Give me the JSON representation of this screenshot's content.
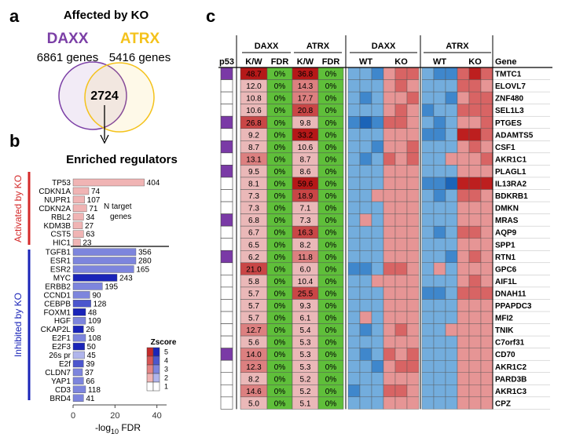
{
  "panel_a": {
    "letter": "a",
    "title": "Affected by KO",
    "left_set": {
      "name": "DAXX",
      "count_text": "6861 genes",
      "color": "#7b3fa6"
    },
    "right_set": {
      "name": "ATRX",
      "count_text": "5416 genes",
      "color": "#f4c21b"
    },
    "overlap": "2724"
  },
  "panel_b": {
    "letter": "b",
    "title": "Enriched regulators",
    "group_activated": "Activated by KO",
    "group_inhibited": "Inhibited by KO",
    "annotation": [
      "N target",
      "genes"
    ],
    "xlabel_main": "-log",
    "xlabel_sub": "10",
    "xlabel_tail": " FDR",
    "legend_title": "Zscore",
    "legend_values": [
      "5",
      "4",
      "3",
      "2",
      "1"
    ],
    "activated_colors": [
      "#c52a2a",
      "#d65555",
      "#e38383",
      "#f0b4b4",
      "#ffffff"
    ],
    "inhibited_colors": [
      "#1a24b8",
      "#4c56cd",
      "#7d85dd",
      "#b0b5ec",
      "#ffffff"
    ]
  },
  "chart_data": {
    "type": "bar",
    "orientation": "horizontal",
    "xlim": [
      0,
      45
    ],
    "xticks": [
      0,
      20,
      40
    ],
    "activated": [
      {
        "name": "TP53",
        "value": 34,
        "label": "404",
        "zscore": 2
      },
      {
        "name": "CDKN1A",
        "value": 7.5,
        "label": "74",
        "zscore": 2
      },
      {
        "name": "NUPR1",
        "value": 5.5,
        "label": "107",
        "zscore": 2
      },
      {
        "name": "CDKN2A",
        "value": 6.5,
        "label": "71",
        "zscore": 2
      },
      {
        "name": "RBL2",
        "value": 5,
        "label": "34",
        "zscore": 2
      },
      {
        "name": "KDM3B",
        "value": 4.5,
        "label": "27",
        "zscore": 2
      },
      {
        "name": "CST5",
        "value": 5,
        "label": "63",
        "zscore": 2
      },
      {
        "name": "HIC1",
        "value": 3.5,
        "label": "23",
        "zscore": 2
      }
    ],
    "inhibited": [
      {
        "name": "TGFB1",
        "value": 30,
        "label": "356",
        "zscore": 3
      },
      {
        "name": "ESR1",
        "value": 30,
        "label": "280",
        "zscore": 3
      },
      {
        "name": "ESR2",
        "value": 29,
        "label": "165",
        "zscore": 3
      },
      {
        "name": "MYC",
        "value": 21,
        "label": "243",
        "zscore": 5
      },
      {
        "name": "ERBB2",
        "value": 14,
        "label": "195",
        "zscore": 3
      },
      {
        "name": "CCND1",
        "value": 8,
        "label": "90",
        "zscore": 3
      },
      {
        "name": "CEBPB",
        "value": 8.5,
        "label": "128",
        "zscore": 4
      },
      {
        "name": "FOXM1",
        "value": 6,
        "label": "48",
        "zscore": 5
      },
      {
        "name": "HGF",
        "value": 6,
        "label": "109",
        "zscore": 3
      },
      {
        "name": "CKAP2L",
        "value": 5,
        "label": "26",
        "zscore": 5
      },
      {
        "name": "E2F1",
        "value": 6,
        "label": "108",
        "zscore": 3
      },
      {
        "name": "E2F3",
        "value": 5.5,
        "label": "50",
        "zscore": 5
      },
      {
        "name": "26s pr",
        "value": 5.5,
        "label": "45",
        "zscore": 2
      },
      {
        "name": "E2f",
        "value": 5,
        "label": "39",
        "zscore": 4
      },
      {
        "name": "CLDN7",
        "value": 4.5,
        "label": "37",
        "zscore": 3
      },
      {
        "name": "YAP1",
        "value": 5,
        "label": "66",
        "zscore": 3
      },
      {
        "name": "CD3",
        "value": 6,
        "label": "118",
        "zscore": 3
      },
      {
        "name": "BRD4",
        "value": 5,
        "label": "41",
        "zscore": 3
      }
    ]
  },
  "panel_c": {
    "letter": "c",
    "col_p53": "p53",
    "col_kw": "K/W",
    "col_fdr": "FDR",
    "col_gene": "Gene",
    "col_wt": "WT",
    "col_ko": "KO",
    "group_daxx": "DAXX",
    "group_atrx": "ATRX",
    "p53_color": "#7a3aa6",
    "fdr_color": "#5fbf3a",
    "rows": [
      {
        "gene": "TMTC1",
        "p53": true,
        "daxx_kw": "48.7",
        "daxx_fdr": "0%",
        "atrx_kw": "36.8",
        "atrx_fdr": "0%",
        "dk": 5,
        "ak": 5,
        "dw": [
          2,
          2,
          1
        ],
        "dko": [
          3,
          4,
          4
        ],
        "aw": [
          2,
          1,
          1
        ],
        "ako": [
          4,
          5,
          4
        ]
      },
      {
        "gene": "ELOVL7",
        "p53": false,
        "daxx_kw": "12.0",
        "daxx_fdr": "0%",
        "atrx_kw": "14.3",
        "atrx_fdr": "0%",
        "dk": 2,
        "ak": 3,
        "dw": [
          2,
          2,
          2
        ],
        "dko": [
          3,
          4,
          3
        ],
        "aw": [
          2,
          2,
          2
        ],
        "ako": [
          4,
          4,
          3
        ]
      },
      {
        "gene": "ZNF480",
        "p53": false,
        "daxx_kw": "10.8",
        "daxx_fdr": "0%",
        "atrx_kw": "17.7",
        "atrx_fdr": "0%",
        "dk": 2,
        "ak": 3,
        "dw": [
          2,
          1,
          2
        ],
        "dko": [
          3,
          3,
          4
        ],
        "aw": [
          2,
          2,
          1
        ],
        "ako": [
          3,
          4,
          4
        ]
      },
      {
        "gene": "SEL1L3",
        "p53": false,
        "daxx_kw": "10.6",
        "daxx_fdr": "0%",
        "atrx_kw": "20.8",
        "atrx_fdr": "0%",
        "dk": 2,
        "ak": 4,
        "dw": [
          2,
          2,
          2
        ],
        "dko": [
          3,
          4,
          3
        ],
        "aw": [
          1,
          2,
          2
        ],
        "ako": [
          4,
          4,
          4
        ]
      },
      {
        "gene": "PTGES",
        "p53": true,
        "daxx_kw": "26.8",
        "daxx_fdr": "0%",
        "atrx_kw": "9.8",
        "atrx_fdr": "0%",
        "dk": 4,
        "ak": 2,
        "dw": [
          1,
          0,
          1
        ],
        "dko": [
          4,
          4,
          3
        ],
        "aw": [
          2,
          1,
          2
        ],
        "ako": [
          3,
          3,
          4
        ]
      },
      {
        "gene": "ADAMTS5",
        "p53": false,
        "daxx_kw": "9.2",
        "daxx_fdr": "0%",
        "atrx_kw": "33.2",
        "atrx_fdr": "0%",
        "dk": 2,
        "ak": 5,
        "dw": [
          2,
          2,
          2
        ],
        "dko": [
          3,
          3,
          3
        ],
        "aw": [
          1,
          1,
          2
        ],
        "ako": [
          5,
          5,
          4
        ]
      },
      {
        "gene": "CSF1",
        "p53": true,
        "daxx_kw": "8.7",
        "daxx_fdr": "0%",
        "atrx_kw": "10.6",
        "atrx_fdr": "0%",
        "dk": 2,
        "ak": 2,
        "dw": [
          2,
          2,
          1
        ],
        "dko": [
          3,
          3,
          4
        ],
        "aw": [
          2,
          2,
          2
        ],
        "ako": [
          3,
          4,
          3
        ]
      },
      {
        "gene": "AKR1C1",
        "p53": false,
        "daxx_kw": "13.1",
        "daxx_fdr": "0%",
        "atrx_kw": "8.7",
        "atrx_fdr": "0%",
        "dk": 3,
        "ak": 2,
        "dw": [
          2,
          1,
          2
        ],
        "dko": [
          4,
          3,
          4
        ],
        "aw": [
          2,
          2,
          3
        ],
        "ako": [
          3,
          3,
          4
        ]
      },
      {
        "gene": "PLAGL1",
        "p53": true,
        "daxx_kw": "9.5",
        "daxx_fdr": "0%",
        "atrx_kw": "8.6",
        "atrx_fdr": "0%",
        "dk": 2,
        "ak": 2,
        "dw": [
          2,
          2,
          2
        ],
        "dko": [
          3,
          3,
          3
        ],
        "aw": [
          2,
          2,
          2
        ],
        "ako": [
          3,
          3,
          3
        ]
      },
      {
        "gene": "IL13RA2",
        "p53": false,
        "daxx_kw": "8.1",
        "daxx_fdr": "0%",
        "atrx_kw": "59.6",
        "atrx_fdr": "0%",
        "dk": 2,
        "ak": 5,
        "dw": [
          2,
          2,
          2
        ],
        "dko": [
          3,
          3,
          3
        ],
        "aw": [
          1,
          1,
          0
        ],
        "ako": [
          5,
          5,
          5
        ]
      },
      {
        "gene": "BDKRB1",
        "p53": false,
        "daxx_kw": "7.3",
        "daxx_fdr": "0%",
        "atrx_kw": "18.9",
        "atrx_fdr": "0%",
        "dk": 2,
        "ak": 4,
        "dw": [
          2,
          2,
          3
        ],
        "dko": [
          3,
          3,
          3
        ],
        "aw": [
          2,
          1,
          2
        ],
        "ako": [
          4,
          4,
          3
        ]
      },
      {
        "gene": "DMKN",
        "p53": false,
        "daxx_kw": "7.3",
        "daxx_fdr": "0%",
        "atrx_kw": "7.1",
        "atrx_fdr": "0%",
        "dk": 2,
        "ak": 2,
        "dw": [
          2,
          2,
          2
        ],
        "dko": [
          3,
          3,
          3
        ],
        "aw": [
          2,
          2,
          2
        ],
        "ako": [
          3,
          3,
          3
        ]
      },
      {
        "gene": "MRAS",
        "p53": true,
        "daxx_kw": "6.8",
        "daxx_fdr": "0%",
        "atrx_kw": "7.3",
        "atrx_fdr": "0%",
        "dk": 2,
        "ak": 2,
        "dw": [
          2,
          3,
          2
        ],
        "dko": [
          3,
          3,
          3
        ],
        "aw": [
          2,
          2,
          2
        ],
        "ako": [
          3,
          3,
          3
        ]
      },
      {
        "gene": "AQP9",
        "p53": false,
        "daxx_kw": "6.7",
        "daxx_fdr": "0%",
        "atrx_kw": "16.3",
        "atrx_fdr": "0%",
        "dk": 2,
        "ak": 4,
        "dw": [
          2,
          2,
          2
        ],
        "dko": [
          3,
          3,
          3
        ],
        "aw": [
          2,
          1,
          2
        ],
        "ako": [
          4,
          4,
          3
        ]
      },
      {
        "gene": "SPP1",
        "p53": false,
        "daxx_kw": "6.5",
        "daxx_fdr": "0%",
        "atrx_kw": "8.2",
        "atrx_fdr": "0%",
        "dk": 2,
        "ak": 2,
        "dw": [
          2,
          2,
          2
        ],
        "dko": [
          3,
          3,
          3
        ],
        "aw": [
          2,
          2,
          2
        ],
        "ako": [
          3,
          3,
          3
        ]
      },
      {
        "gene": "RTN1",
        "p53": true,
        "daxx_kw": "6.2",
        "daxx_fdr": "0%",
        "atrx_kw": "11.8",
        "atrx_fdr": "0%",
        "dk": 2,
        "ak": 3,
        "dw": [
          2,
          2,
          2
        ],
        "dko": [
          3,
          3,
          3
        ],
        "aw": [
          2,
          2,
          1
        ],
        "ako": [
          3,
          4,
          3
        ]
      },
      {
        "gene": "GPC6",
        "p53": false,
        "daxx_kw": "21.0",
        "daxx_fdr": "0%",
        "atrx_kw": "6.0",
        "atrx_fdr": "0%",
        "dk": 4,
        "ak": 2,
        "dw": [
          1,
          1,
          2
        ],
        "dko": [
          4,
          4,
          3
        ],
        "aw": [
          2,
          3,
          2
        ],
        "ako": [
          3,
          3,
          3
        ]
      },
      {
        "gene": "AIF1L",
        "p53": false,
        "daxx_kw": "5.8",
        "daxx_fdr": "0%",
        "atrx_kw": "10.4",
        "atrx_fdr": "0%",
        "dk": 2,
        "ak": 2,
        "dw": [
          2,
          2,
          3
        ],
        "dko": [
          3,
          3,
          3
        ],
        "aw": [
          2,
          2,
          2
        ],
        "ako": [
          3,
          4,
          3
        ]
      },
      {
        "gene": "DNAH11",
        "p53": false,
        "daxx_kw": "5.7",
        "daxx_fdr": "0%",
        "atrx_kw": "25.5",
        "atrx_fdr": "0%",
        "dk": 2,
        "ak": 4,
        "dw": [
          2,
          2,
          2
        ],
        "dko": [
          3,
          3,
          3
        ],
        "aw": [
          1,
          1,
          2
        ],
        "ako": [
          4,
          4,
          4
        ]
      },
      {
        "gene": "PPAPDC3",
        "p53": false,
        "daxx_kw": "5.7",
        "daxx_fdr": "0%",
        "atrx_kw": "9.3",
        "atrx_fdr": "0%",
        "dk": 2,
        "ak": 2,
        "dw": [
          2,
          2,
          2
        ],
        "dko": [
          3,
          3,
          3
        ],
        "aw": [
          2,
          2,
          2
        ],
        "ako": [
          3,
          3,
          3
        ]
      },
      {
        "gene": "MFI2",
        "p53": false,
        "daxx_kw": "5.7",
        "daxx_fdr": "0%",
        "atrx_kw": "6.1",
        "atrx_fdr": "0%",
        "dk": 2,
        "ak": 2,
        "dw": [
          2,
          3,
          2
        ],
        "dko": [
          3,
          3,
          3
        ],
        "aw": [
          2,
          2,
          2
        ],
        "ako": [
          3,
          3,
          3
        ]
      },
      {
        "gene": "TNIK",
        "p53": false,
        "daxx_kw": "12.7",
        "daxx_fdr": "0%",
        "atrx_kw": "5.4",
        "atrx_fdr": "0%",
        "dk": 3,
        "ak": 2,
        "dw": [
          2,
          1,
          2
        ],
        "dko": [
          3,
          4,
          3
        ],
        "aw": [
          2,
          2,
          3
        ],
        "ako": [
          3,
          3,
          3
        ]
      },
      {
        "gene": "C7orf31",
        "p53": false,
        "daxx_kw": "5.6",
        "daxx_fdr": "0%",
        "atrx_kw": "5.3",
        "atrx_fdr": "0%",
        "dk": 2,
        "ak": 2,
        "dw": [
          2,
          2,
          2
        ],
        "dko": [
          3,
          3,
          3
        ],
        "aw": [
          2,
          2,
          2
        ],
        "ako": [
          3,
          3,
          3
        ]
      },
      {
        "gene": "CD70",
        "p53": true,
        "daxx_kw": "14.0",
        "daxx_fdr": "0%",
        "atrx_kw": "5.3",
        "atrx_fdr": "0%",
        "dk": 3,
        "ak": 2,
        "dw": [
          2,
          1,
          2
        ],
        "dko": [
          4,
          3,
          4
        ],
        "aw": [
          2,
          2,
          2
        ],
        "ako": [
          3,
          3,
          3
        ]
      },
      {
        "gene": "AKR1C2",
        "p53": false,
        "daxx_kw": "12.3",
        "daxx_fdr": "0%",
        "atrx_kw": "5.3",
        "atrx_fdr": "0%",
        "dk": 3,
        "ak": 2,
        "dw": [
          2,
          2,
          1
        ],
        "dko": [
          3,
          4,
          4
        ],
        "aw": [
          2,
          2,
          2
        ],
        "ako": [
          3,
          3,
          3
        ]
      },
      {
        "gene": "PARD3B",
        "p53": false,
        "daxx_kw": "8.2",
        "daxx_fdr": "0%",
        "atrx_kw": "5.2",
        "atrx_fdr": "0%",
        "dk": 2,
        "ak": 2,
        "dw": [
          2,
          2,
          2
        ],
        "dko": [
          3,
          3,
          3
        ],
        "aw": [
          2,
          2,
          2
        ],
        "ako": [
          3,
          3,
          3
        ]
      },
      {
        "gene": "AKR1C3",
        "p53": false,
        "daxx_kw": "14.6",
        "daxx_fdr": "0%",
        "atrx_kw": "5.2",
        "atrx_fdr": "0%",
        "dk": 3,
        "ak": 2,
        "dw": [
          1,
          2,
          2
        ],
        "dko": [
          4,
          4,
          3
        ],
        "aw": [
          2,
          2,
          2
        ],
        "ako": [
          3,
          3,
          3
        ]
      },
      {
        "gene": "CPZ",
        "p53": false,
        "daxx_kw": "5.0",
        "daxx_fdr": "0%",
        "atrx_kw": "5.1",
        "atrx_fdr": "0%",
        "dk": 2,
        "ak": 2,
        "dw": [
          2,
          2,
          2
        ],
        "dko": [
          3,
          3,
          3
        ],
        "aw": [
          2,
          2,
          2
        ],
        "ako": [
          3,
          3,
          3
        ]
      }
    ]
  }
}
